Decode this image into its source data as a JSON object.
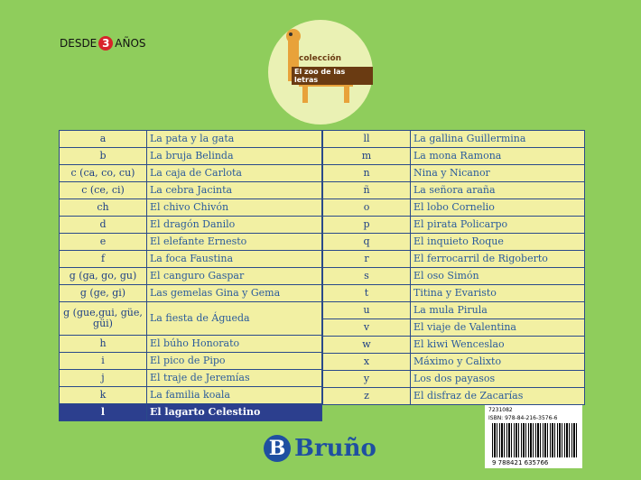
{
  "header": {
    "age_prefix": "DESDE",
    "age_number": "3",
    "age_suffix": "AÑOS"
  },
  "logo": {
    "line1": "colección",
    "line2": "El zoo de las letras"
  },
  "left_table": {
    "rows": [
      [
        "a",
        "La pata y la gata"
      ],
      [
        "b",
        "La bruja Belinda"
      ],
      [
        "c (ca, co, cu)",
        "La caja de Carlota"
      ],
      [
        "c (ce, ci)",
        "La cebra Jacinta"
      ],
      [
        "ch",
        "El chivo Chivón"
      ],
      [
        "d",
        "El dragón Danilo"
      ],
      [
        "e",
        "El elefante Ernesto"
      ],
      [
        "f",
        "La foca Faustina"
      ],
      [
        "g (ga, go, gu)",
        "El canguro Gaspar"
      ],
      [
        "g (ge, gi)",
        "Las gemelas Gina y Gema"
      ],
      [
        "g (gue,gui, güe, güi)",
        "La fiesta de Águeda"
      ],
      [
        "h",
        "El búho Honorato"
      ],
      [
        "i",
        "El pico de Pipo"
      ],
      [
        "j",
        "El traje de Jeremías"
      ],
      [
        "k",
        "La familia koala"
      ],
      [
        "l",
        "El lagarto Celestino"
      ]
    ]
  },
  "right_table": {
    "rows": [
      [
        "ll",
        "La gallina Guillermina"
      ],
      [
        "m",
        "La mona Ramona"
      ],
      [
        "n",
        "Nina y Nicanor"
      ],
      [
        "ñ",
        "La señora araña"
      ],
      [
        "o",
        "El lobo Cornelio"
      ],
      [
        "p",
        "El pirata Policarpo"
      ],
      [
        "q",
        "El inquieto Roque"
      ],
      [
        "r",
        "El ferrocarril de Rigoberto"
      ],
      [
        "s",
        "El oso Simón"
      ],
      [
        "t",
        "Titina y Evaristo"
      ],
      [
        "u",
        "La mula Pirula"
      ],
      [
        "v",
        "El viaje de Valentina"
      ],
      [
        "w",
        "El kiwi Wenceslao"
      ],
      [
        "x",
        "Máximo y Calixto"
      ],
      [
        "y",
        "Los dos payasos"
      ],
      [
        "z",
        "El disfraz de Zacarías"
      ]
    ]
  },
  "barcode": {
    "code": "7231082",
    "isbn": "ISBN: 978-84-216-3576-6",
    "digits": "9 788421 635766"
  },
  "publisher": {
    "name": "Bruño"
  }
}
